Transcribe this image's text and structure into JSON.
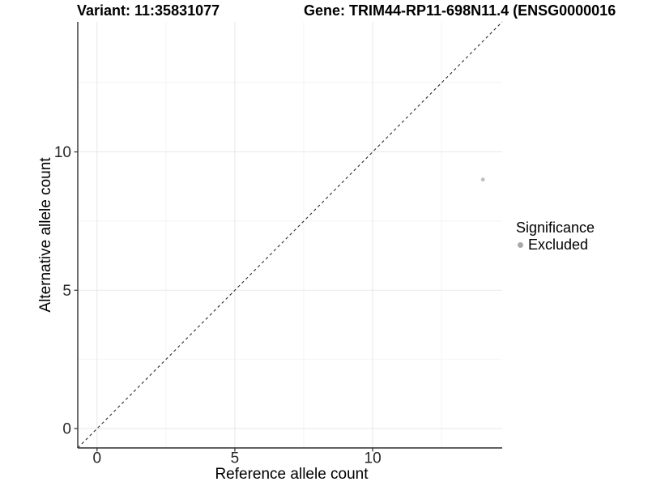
{
  "titles": {
    "variant": "Variant: 11:35831077",
    "gene": "Gene: TRIM44-RP11-698N11.4 (ENSG0000016"
  },
  "chart_data": {
    "type": "scatter",
    "xlabel": "Reference allele count",
    "ylabel": "Alternative allele count",
    "xlim": [
      -0.7,
      14.7
    ],
    "ylim": [
      -0.7,
      14.7
    ],
    "xticks": [
      0,
      5,
      10
    ],
    "yticks": [
      0,
      5,
      10
    ],
    "xminor": [
      2.5,
      7.5,
      12.5
    ],
    "yminor": [
      2.5,
      7.5,
      12.5
    ],
    "grid": "on",
    "legend_position": "right",
    "points": [
      {
        "x": 14,
        "y": 9,
        "series": "Excluded"
      }
    ],
    "identity_line": {
      "slope": 1,
      "intercept": 0,
      "style": "dashed"
    },
    "legend": {
      "title": "Significance",
      "items": [
        {
          "label": "Excluded",
          "color": "#a8a8a8"
        }
      ]
    },
    "colors": {
      "point": "#bfbfbf",
      "legend_swatch": "#a8a8a8",
      "axis": "#2d2d2d",
      "tick_text": "#262626",
      "grid_major": "#e7e7e7",
      "grid_minor": "#f3f3f3",
      "dashed_line": "#2a2a2a",
      "background": "#ffffff"
    }
  }
}
